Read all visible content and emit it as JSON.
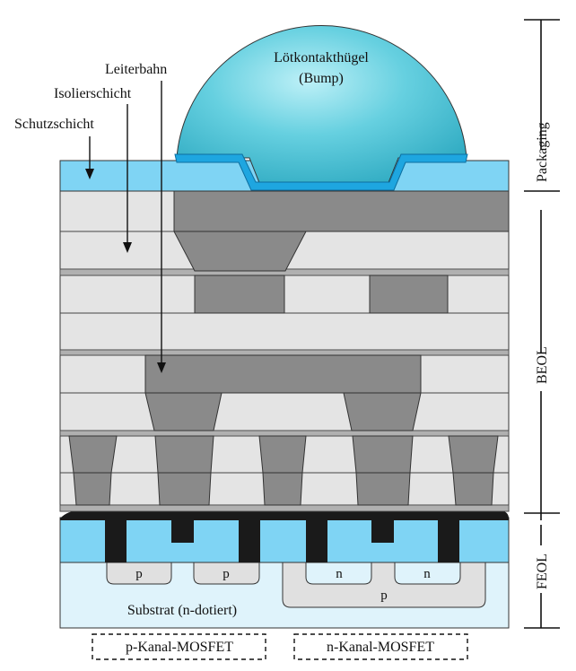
{
  "labels": {
    "bump_line1": "Lötkontakthügel",
    "bump_line2": "(Bump)",
    "leiterbahn": "Leiterbahn",
    "isolierschicht": "Isolierschicht",
    "schutzschicht": "Schutzschicht",
    "substrat": "Substrat (n-dotiert)",
    "p_left": "p",
    "p_right": "p",
    "n_left": "n",
    "n_right": "n",
    "p_well": "p"
  },
  "sections": {
    "packaging": "Packaging",
    "beol": "BEOL",
    "feol": "FEOL"
  },
  "transistors": {
    "pmos": "p-Kanal-MOSFET",
    "nmos": "n-Kanal-MOSFET"
  },
  "colors": {
    "dielectric": "#e4e4e4",
    "metal": "#8a8a8a",
    "passivation": "#7fd4f4",
    "bump": "#5cc8d8",
    "substrate": "#dff3fb",
    "gate": "#1a1a1a"
  }
}
